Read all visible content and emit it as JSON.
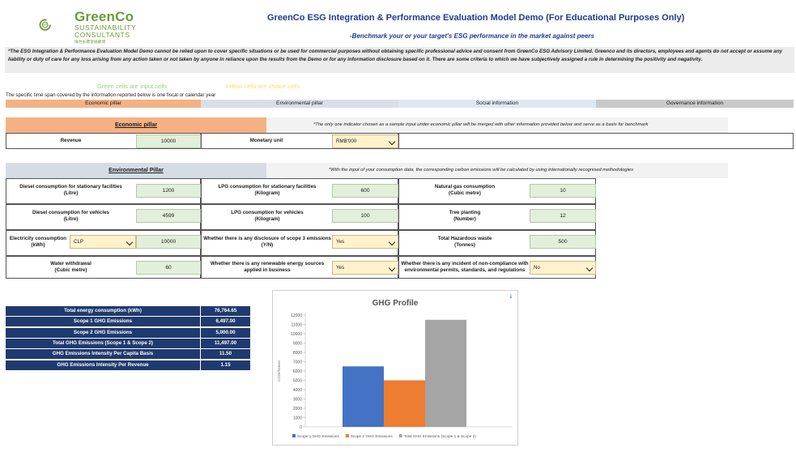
{
  "header": {
    "logo_name": "GreenCo",
    "logo_sub1": "SUSTAINABILITY",
    "logo_sub2": "CONSULTANTS",
    "logo_chinese": "綠色永續發展顧問",
    "logo_badge": "ESG",
    "title": "GreenCo ESG Integration & Performance Evaluation Model Demo (For Educational Purposes Only)",
    "subtitle": "-Benchmark your or your target's ESG performance in the market against peers"
  },
  "disclaimer": "*The ESG Integration & Performance Evaluation Model Demo cannot be relied upon to cover specific situations or be used for commercial purposes without obtaining specific professional advice and consent from GreenCo ESG Advisory Limited. Greenco and its directors, employees and agents do not accept or assume any liability or duty of care for any loss arising from any action taken or not taken by anyone in reliance upon the results from the Demo or for any information disclosure based on it. There are some criteria to which we have subjectively assigned a rule in determining the positivity and negativity.",
  "legend": {
    "green": "Green cells are input cells",
    "yellow": "Yellow cells are choice cells"
  },
  "timespan": "The specific time span covered by the information reported below is one fiscal or calendar year",
  "tabs": [
    "Economic pillar",
    "Environmental pillar",
    "Social information",
    "Governance information"
  ],
  "economic": {
    "header": "Economic pillar",
    "note": "*The only one indicator chosen as a sample input under economic pillar will be merged with other information provided below and serve as a basis for benchmark",
    "revenue_label": "Revenue",
    "revenue_value": "10000",
    "monetary_label": "Monetary unit",
    "monetary_value": "RMB'000"
  },
  "environmental": {
    "header": "Environmental Pillar",
    "note": "*With the input of your consumption data, the corresponding carbon emissions will be calculated by using internationally recognised methodologies",
    "fields": {
      "diesel_stationary": {
        "l1": "Diesel consumption for stationary facilities",
        "l2": "(Litre)",
        "value": "1200"
      },
      "diesel_vehicles": {
        "l1": "Diesel consumption for vehicles",
        "l2": "(Litre)",
        "value": "4599"
      },
      "electricity": {
        "l1": "Electricity consumption",
        "l2": "(kWh)",
        "supplier": "CLP",
        "value": "10000"
      },
      "water": {
        "l1": "Water withdrawal",
        "l2": "(Cubic metre)",
        "value": "60"
      },
      "lpg_stationary": {
        "l1": "LPG consumption for stationary facilities",
        "l2": "(Kilogram)",
        "value": "600"
      },
      "lpg_vehicles": {
        "l1": "LPG consumption for vehicles",
        "l2": "(Kilogram)",
        "value": "100"
      },
      "scope3": {
        "l1": "Whether there is any disclosure of scope 3 emissions",
        "l2": "(Y/N)",
        "value": "Yes"
      },
      "renewable": {
        "l1": "Whether there is any renewable energy sources",
        "l2": "applied in business",
        "value": "Yes"
      },
      "natural_gas": {
        "l1": "Natural gas consumption",
        "l2": "(Cubic metre)",
        "value": "10"
      },
      "tree": {
        "l1": "Tree planting",
        "l2": "(Number)",
        "value": "12"
      },
      "hazardous": {
        "l1": "Total Hazardous waste",
        "l2": "(Tonnes)",
        "value": "500"
      },
      "noncompliance": {
        "l1": "Whether there is any incident of non-compliance with",
        "l2": "environmental permits, standards, and regulations",
        "value": "No"
      }
    }
  },
  "results": [
    {
      "label": "Total energy consumption (kWh)",
      "value": "76,764.65"
    },
    {
      "label": "Scope 1 GHG Emissions",
      "value": "6,497.00"
    },
    {
      "label": "Scope 2 GHG Emissions",
      "value": "5,000.00"
    },
    {
      "label": "Total GHG Emissions (Scope 1 & Scope 2)",
      "value": "11,497.00"
    },
    {
      "label": "GHG Emissions Intensity Per Capita Basis",
      "value": "11.50"
    },
    {
      "label": "GHG Emissions Intensity Per Revenue",
      "value": "1.15"
    }
  ],
  "chart_data": {
    "type": "bar",
    "title": "GHG Profile",
    "ylabel": "CO2e/tonnes",
    "xlabel": "",
    "ylim": [
      0,
      12000
    ],
    "yticks": [
      0,
      1000,
      2000,
      3000,
      4000,
      5000,
      6000,
      7000,
      8000,
      9000,
      10000,
      11000,
      12000
    ],
    "grid": false,
    "legend_position": "bottom",
    "series": [
      {
        "name": "Scope 1 GHG Emissions",
        "value": 6497,
        "color": "#4472c4"
      },
      {
        "name": "Scope 2 GHG Emissions",
        "value": 5000,
        "color": "#ed7d31"
      },
      {
        "name": "Total GHG Emissions (Scope 1 & Scope 2)",
        "value": 11497,
        "color": "#a5a5a5"
      }
    ]
  }
}
